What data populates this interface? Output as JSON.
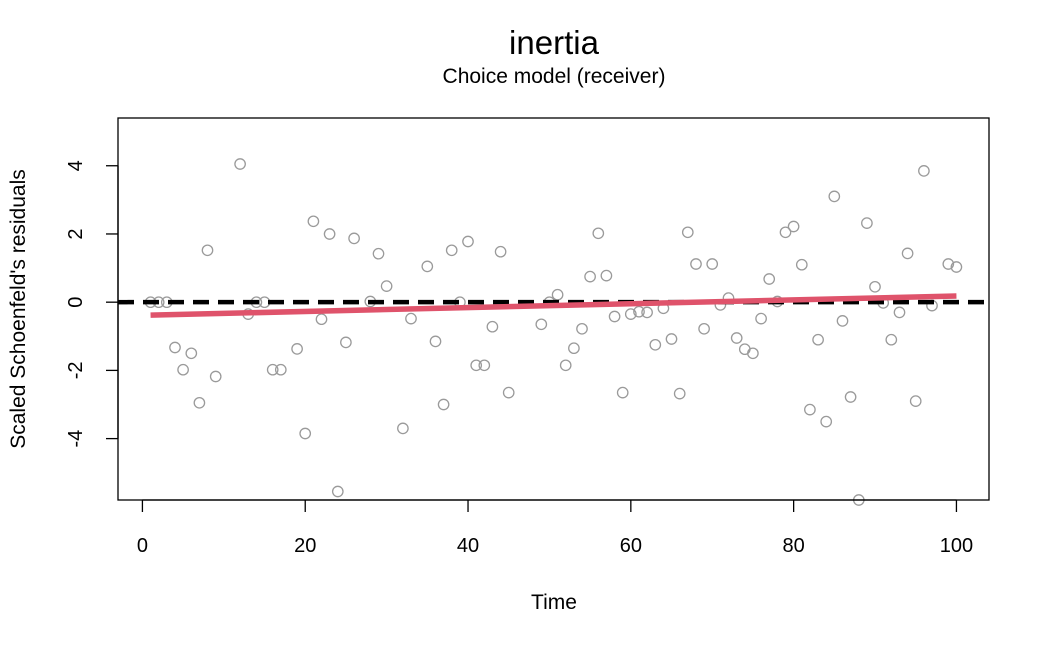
{
  "chart_data": {
    "type": "scatter",
    "title": "inertia",
    "subtitle": "Choice model (receiver)",
    "xlabel": "Time",
    "ylabel": "Scaled Schoenfeld's residuals",
    "xlim": [
      -3,
      104
    ],
    "ylim": [
      -5.8,
      5.4
    ],
    "xticks": [
      0,
      20,
      40,
      60,
      80,
      100
    ],
    "yticks": [
      -4,
      -2,
      0,
      2,
      4
    ],
    "grid": false,
    "colors": {
      "points": "#9a9a9a",
      "trend": "#df536b",
      "reference": "#000000",
      "frame": "#000000"
    },
    "series": [
      {
        "kind": "points",
        "x": [
          1,
          2,
          3,
          4,
          5,
          6,
          7,
          8,
          9,
          12,
          13,
          14,
          15,
          16,
          17,
          19,
          20,
          21,
          22,
          23,
          24,
          25,
          26,
          28,
          29,
          30,
          32,
          33,
          35,
          36,
          37,
          38,
          39,
          40,
          41,
          42,
          43,
          44,
          45,
          49,
          50,
          51,
          52,
          53,
          54,
          55,
          56,
          57,
          58,
          59,
          60,
          61,
          62,
          63,
          64,
          65,
          66,
          67,
          68,
          69,
          70,
          71,
          72,
          73,
          74,
          75,
          76,
          77,
          78,
          79,
          80,
          81,
          82,
          83,
          84,
          85,
          86,
          87,
          88,
          89,
          90,
          91,
          92,
          93,
          94,
          95,
          96,
          97,
          99,
          100
        ],
        "y": [
          0.0,
          0.0,
          0.0,
          -1.33,
          -1.98,
          -1.5,
          -2.95,
          1.52,
          -2.18,
          4.05,
          -0.35,
          0.0,
          0.0,
          -1.98,
          -1.98,
          -1.37,
          -3.85,
          2.37,
          -0.5,
          2.0,
          -5.55,
          -1.18,
          1.87,
          0.02,
          1.42,
          0.47,
          -3.7,
          -0.48,
          1.05,
          -1.15,
          -3.0,
          1.52,
          0.0,
          1.78,
          -1.85,
          -1.85,
          -0.72,
          1.48,
          -2.65,
          -0.65,
          0.0,
          0.22,
          -1.85,
          -1.35,
          -0.78,
          0.75,
          2.02,
          0.78,
          -0.42,
          -2.65,
          -0.35,
          -0.28,
          -0.3,
          -1.25,
          -0.18,
          -1.08,
          -2.68,
          2.05,
          1.12,
          -0.78,
          1.12,
          -0.08,
          0.12,
          -1.05,
          -1.38,
          -1.5,
          -0.48,
          0.68,
          0.02,
          2.05,
          2.22,
          1.1,
          -3.15,
          -1.1,
          -3.5,
          3.1,
          -0.55,
          -2.78,
          -5.8,
          2.32,
          0.45,
          -0.02,
          -1.1,
          -0.3,
          1.43,
          -2.9,
          3.85,
          -0.1,
          1.12,
          1.03
        ]
      },
      {
        "kind": "trend",
        "x": [
          1,
          100
        ],
        "y": [
          -0.38,
          0.18
        ]
      },
      {
        "kind": "reference",
        "y": 0
      }
    ]
  }
}
